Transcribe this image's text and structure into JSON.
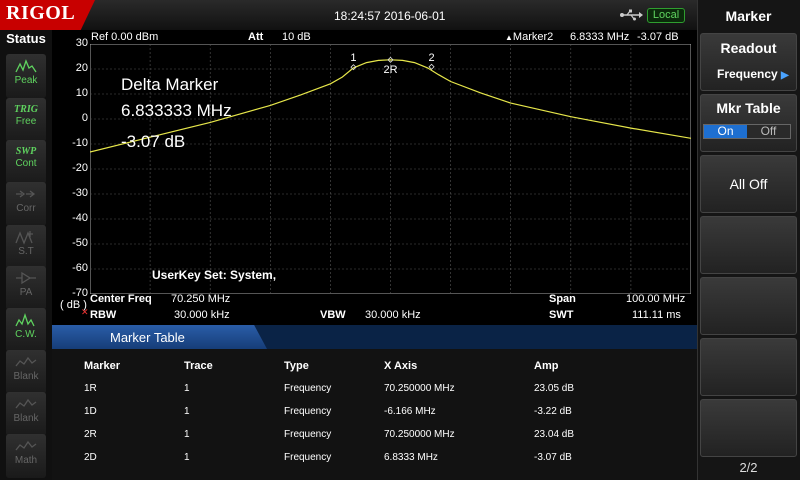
{
  "header": {
    "logo": "RIGOL",
    "datetime": "18:24:57  2016-06-01",
    "local_badge": "Local",
    "usb_icon": "usb-icon"
  },
  "status_panel": {
    "title": "Status",
    "items": [
      {
        "label": "Peak",
        "state": "on",
        "icon": "peak-icon"
      },
      {
        "label": "Free",
        "prefix": "TRIG",
        "state": "on",
        "icon": "trig-icon"
      },
      {
        "label": "Cont",
        "prefix": "SWP",
        "state": "on",
        "icon": "sweep-icon"
      },
      {
        "label": "Corr",
        "state": "off",
        "icon": "corr-icon"
      },
      {
        "label": "S.T",
        "state": "off",
        "icon": "source-tracking-icon"
      },
      {
        "label": "PA",
        "state": "off",
        "icon": "preamp-icon"
      },
      {
        "label": "C.W.",
        "state": "on",
        "icon": "cw-icon"
      },
      {
        "label": "Blank",
        "state": "off",
        "icon": "trace-icon"
      },
      {
        "label": "Blank",
        "state": "off",
        "icon": "trace-icon"
      },
      {
        "label": "Math",
        "state": "off",
        "icon": "math-icon"
      }
    ]
  },
  "plot_header": {
    "ref": "Ref  0.00 dBm",
    "att_label": "Att",
    "att_value": "10 dB",
    "marker_label": "Marker2",
    "marker_freq": "6.8333 MHz",
    "marker_amp": "-3.07 dB"
  },
  "y_axis": {
    "ticks": [
      "30",
      "20",
      "10",
      "0",
      "-10",
      "-20",
      "-30",
      "-40",
      "-50",
      "-60",
      "-70"
    ],
    "unit": "( dB )"
  },
  "delta_marker": {
    "title": "Delta Marker",
    "freq": "6.833333 MHz",
    "amp": "-3.07 dB"
  },
  "userkey": "UserKey Set:   System,",
  "marker_labels": [
    "1",
    "2",
    "2R"
  ],
  "chart_data": {
    "type": "line",
    "x_unit": "MHz",
    "xlim": [
      20.25,
      120.25
    ],
    "ylim": [
      -80,
      30
    ],
    "series": [
      {
        "x": [
          20.25,
          30.25,
          40.25,
          50.25,
          55.25,
          60.25,
          62.25,
          64.08,
          66.25,
          68.25,
          70.25,
          72.25,
          74.25,
          76.42,
          78.25,
          80.25,
          85.25,
          90.25,
          100.25,
          110.25,
          120.25
        ],
        "y": [
          -17.5,
          -11,
          -4.5,
          3,
          7.5,
          12.5,
          15.5,
          19.5,
          21.8,
          22.8,
          23.05,
          22.8,
          21.8,
          19.5,
          16.5,
          13.5,
          8.5,
          4,
          -2,
          -7,
          -11.5
        ]
      }
    ],
    "markers": [
      {
        "label": "1",
        "x": 64.084,
        "y": 19.8
      },
      {
        "label": "2R",
        "x": 70.25,
        "y": 23.04
      },
      {
        "label": "2",
        "x": 77.083,
        "y": 19.97
      }
    ],
    "grid": true,
    "colors": {
      "trace": "#e6e64a",
      "grid": "#555555",
      "background": "#000000"
    }
  },
  "bottom_info": {
    "center_freq_label": "Center Freq",
    "center_freq_value": "70.250 MHz",
    "span_label": "Span",
    "span_value": "100.00 MHz",
    "rbw_label": "RBW",
    "rbw_value": "30.000 kHz",
    "vbw_label": "VBW",
    "vbw_value": "30.000 kHz",
    "swt_label": "SWT",
    "swt_value": "111.11 ms"
  },
  "marker_table": {
    "title": "Marker Table",
    "columns": [
      "Marker",
      "Trace",
      "Type",
      "X Axis",
      "Amp"
    ],
    "rows": [
      [
        "1R",
        "1",
        "Frequency",
        "70.250000 MHz",
        "23.05 dB"
      ],
      [
        "1D",
        "1",
        "Frequency",
        "-6.166 MHz",
        "-3.22 dB"
      ],
      [
        "2R",
        "1",
        "Frequency",
        "70.250000 MHz",
        "23.04 dB"
      ],
      [
        "2D",
        "1",
        "Frequency",
        "6.8333 MHz",
        "-3.07 dB"
      ]
    ]
  },
  "menu": {
    "title": "Marker",
    "readout_label": "Readout",
    "readout_value": "Frequency",
    "mkr_table_label": "Mkr Table",
    "on_label": "On",
    "off_label": "Off",
    "all_off_label": "All Off",
    "page": "2/2"
  }
}
